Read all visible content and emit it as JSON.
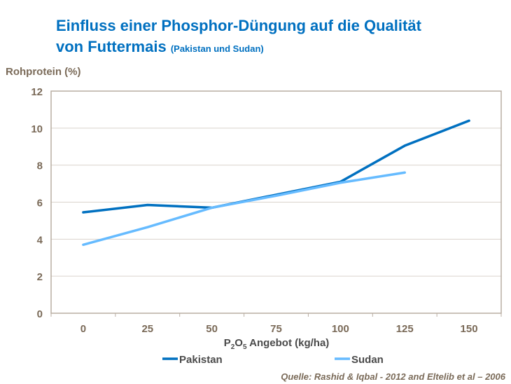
{
  "title": {
    "main": "Einfluss einer Phosphor-Düngung  auf die Qualität",
    "line2": "von Futtermais",
    "sub": "(Pakistan und Sudan)"
  },
  "source": "Quelle: Rashid & Iqbal - 2012 and Eltelib et al – 2006",
  "chart_data": {
    "type": "line",
    "ylabel": "Rohprotein (%)",
    "xlabel": "P2O5 Angebot (kg/ha)",
    "categories": [
      "0",
      "25",
      "50",
      "75",
      "100",
      "125",
      "150"
    ],
    "ylim": [
      0,
      12
    ],
    "yticks": [
      0,
      2,
      4,
      6,
      8,
      10,
      12
    ],
    "grid": true,
    "legend": "bottom",
    "series": [
      {
        "name": "Pakistan",
        "color": "#0070c0",
        "values": [
          5.45,
          5.85,
          5.7,
          6.4,
          7.1,
          9.05,
          10.4
        ]
      },
      {
        "name": "Sudan",
        "color": "#66bbff",
        "values": [
          3.7,
          4.65,
          5.7,
          6.35,
          7.05,
          7.6,
          null
        ]
      }
    ]
  }
}
